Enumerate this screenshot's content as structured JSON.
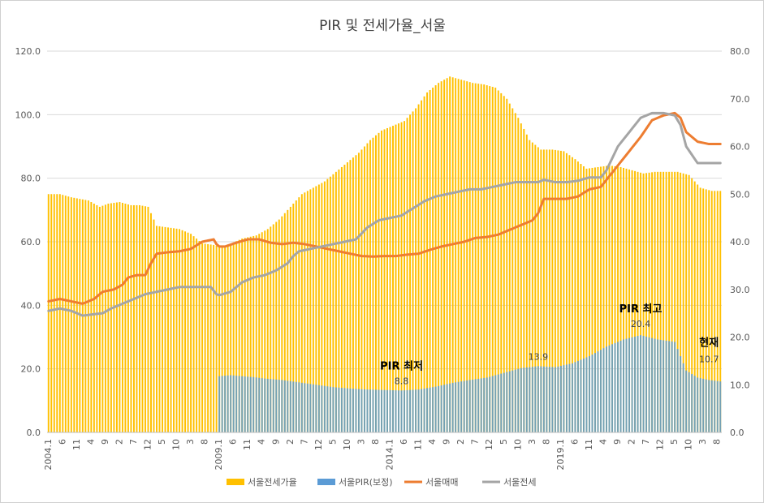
{
  "chart_data": {
    "type": "bar",
    "title": "PIR 및 전세가율_서울",
    "y_left": {
      "ticks": [
        "0.0",
        "20.0",
        "40.0",
        "60.0",
        "80.0",
        "100.0",
        "120.0"
      ],
      "ylim": [
        0,
        120
      ]
    },
    "y_right": {
      "ticks": [
        "0.0",
        "10.0",
        "20.0",
        "30.0",
        "40.0",
        "50.0",
        "60.0",
        "70.0",
        "80.0"
      ],
      "ylim": [
        0,
        80
      ]
    },
    "x_ticks": [
      "2004.1",
      "6",
      "11",
      "4",
      "9",
      "2",
      "7",
      "12",
      "5",
      "10",
      "3",
      "8",
      "2009.1",
      "6",
      "11",
      "4",
      "9",
      "2",
      "7",
      "12",
      "5",
      "10",
      "3",
      "8",
      "2014.1",
      "6",
      "11",
      "4",
      "9",
      "2",
      "7",
      "12",
      "5",
      "10",
      "3",
      "8",
      "2019.1",
      "6",
      "11",
      "4",
      "9",
      "2",
      "7",
      "12",
      "5",
      "10",
      "3",
      "8"
    ],
    "x_start": "2004-01",
    "grid": true,
    "legend_position": "bottom",
    "series": [
      {
        "name": "서울전세가율",
        "type": "bar",
        "axis": "left",
        "color": "#FFC000",
        "keypoints": [
          [
            0,
            75.0
          ],
          [
            4,
            75.0
          ],
          [
            8,
            74.0
          ],
          [
            14,
            73.0
          ],
          [
            18,
            71.0
          ],
          [
            21,
            72.0
          ],
          [
            25,
            72.5
          ],
          [
            29,
            71.5
          ],
          [
            32,
            71.5
          ],
          [
            35,
            71.0
          ],
          [
            38,
            65.0
          ],
          [
            42,
            64.5
          ],
          [
            46,
            64.0
          ],
          [
            50,
            62.5
          ],
          [
            54,
            59.5
          ],
          [
            58,
            59.0
          ],
          [
            60,
            58.5
          ],
          [
            63,
            59.0
          ],
          [
            68,
            61.0
          ],
          [
            73,
            62.0
          ],
          [
            77,
            64.0
          ],
          [
            81,
            67.0
          ],
          [
            85,
            71.0
          ],
          [
            89,
            75.0
          ],
          [
            93,
            77.0
          ],
          [
            97,
            79.0
          ],
          [
            101,
            82.0
          ],
          [
            105,
            85.0
          ],
          [
            109,
            88.0
          ],
          [
            113,
            92.0
          ],
          [
            117,
            95.0
          ],
          [
            121,
            96.5
          ],
          [
            125,
            98.0
          ],
          [
            129,
            102.0
          ],
          [
            133,
            107.0
          ],
          [
            137,
            110.0
          ],
          [
            141,
            112.0
          ],
          [
            145,
            111.0
          ],
          [
            149,
            110.0
          ],
          [
            153,
            109.5
          ],
          [
            157,
            108.5
          ],
          [
            161,
            105.0
          ],
          [
            165,
            99.0
          ],
          [
            169,
            92.0
          ],
          [
            173,
            89.0
          ],
          [
            177,
            89.0
          ],
          [
            181,
            88.5
          ],
          [
            185,
            86.0
          ],
          [
            189,
            83.0
          ],
          [
            193,
            83.5
          ],
          [
            197,
            84.0
          ],
          [
            201,
            83.5
          ],
          [
            205,
            82.5
          ],
          [
            209,
            81.5
          ],
          [
            213,
            82.0
          ],
          [
            217,
            82.0
          ],
          [
            221,
            82.0
          ],
          [
            225,
            81.0
          ],
          [
            229,
            77.0
          ],
          [
            233,
            76.0
          ],
          [
            236,
            76.0
          ]
        ]
      },
      {
        "name": "서울PIR(보정)",
        "type": "bar",
        "axis": "right",
        "color": "#5B9BD5",
        "keypoints": [
          [
            60,
            11.8
          ],
          [
            64,
            12.0
          ],
          [
            68,
            11.8
          ],
          [
            72,
            11.6
          ],
          [
            76,
            11.3
          ],
          [
            82,
            11.0
          ],
          [
            88,
            10.5
          ],
          [
            94,
            10.0
          ],
          [
            100,
            9.5
          ],
          [
            106,
            9.2
          ],
          [
            112,
            9.0
          ],
          [
            118,
            8.9
          ],
          [
            124,
            8.8
          ],
          [
            130,
            9.0
          ],
          [
            136,
            9.6
          ],
          [
            142,
            10.4
          ],
          [
            148,
            11.0
          ],
          [
            154,
            11.5
          ],
          [
            160,
            12.5
          ],
          [
            166,
            13.5
          ],
          [
            172,
            13.9
          ],
          [
            178,
            13.7
          ],
          [
            184,
            14.5
          ],
          [
            190,
            16.0
          ],
          [
            196,
            18.0
          ],
          [
            202,
            19.5
          ],
          [
            208,
            20.4
          ],
          [
            214,
            19.5
          ],
          [
            220,
            19.0
          ],
          [
            224,
            13.0
          ],
          [
            228,
            11.5
          ],
          [
            232,
            11.0
          ],
          [
            236,
            10.7
          ]
        ]
      },
      {
        "name": "서울매매",
        "type": "line",
        "axis": "right",
        "color": "#ED7D31",
        "keypoints": [
          [
            0,
            27.5
          ],
          [
            4,
            28.0
          ],
          [
            8,
            27.5
          ],
          [
            12,
            27.0
          ],
          [
            16,
            28.0
          ],
          [
            19,
            29.5
          ],
          [
            23,
            30.0
          ],
          [
            26,
            31.0
          ],
          [
            28,
            32.5
          ],
          [
            31,
            33.0
          ],
          [
            34,
            33.0
          ],
          [
            36,
            35.5
          ],
          [
            38,
            37.5
          ],
          [
            42,
            37.8
          ],
          [
            46,
            38.0
          ],
          [
            50,
            38.5
          ],
          [
            54,
            40.0
          ],
          [
            58,
            40.5
          ],
          [
            59,
            39.5
          ],
          [
            60,
            39.0
          ],
          [
            62,
            39.0
          ],
          [
            66,
            39.8
          ],
          [
            70,
            40.5
          ],
          [
            74,
            40.5
          ],
          [
            78,
            39.8
          ],
          [
            82,
            39.5
          ],
          [
            86,
            39.8
          ],
          [
            90,
            39.5
          ],
          [
            94,
            39.0
          ],
          [
            98,
            38.5
          ],
          [
            102,
            38.0
          ],
          [
            106,
            37.5
          ],
          [
            110,
            37.0
          ],
          [
            114,
            36.9
          ],
          [
            118,
            37.0
          ],
          [
            122,
            37.0
          ],
          [
            126,
            37.3
          ],
          [
            130,
            37.5
          ],
          [
            134,
            38.3
          ],
          [
            138,
            39.0
          ],
          [
            142,
            39.5
          ],
          [
            146,
            40.0
          ],
          [
            150,
            40.8
          ],
          [
            154,
            41.0
          ],
          [
            158,
            41.5
          ],
          [
            162,
            42.5
          ],
          [
            166,
            43.5
          ],
          [
            170,
            44.5
          ],
          [
            172,
            46.0
          ],
          [
            174,
            49.0
          ],
          [
            178,
            49.0
          ],
          [
            182,
            49.0
          ],
          [
            186,
            49.5
          ],
          [
            190,
            51.0
          ],
          [
            194,
            51.5
          ],
          [
            196,
            53.0
          ],
          [
            200,
            56.0
          ],
          [
            204,
            59.0
          ],
          [
            208,
            62.0
          ],
          [
            212,
            65.5
          ],
          [
            216,
            66.5
          ],
          [
            220,
            67.0
          ],
          [
            222,
            66.0
          ],
          [
            224,
            63.0
          ],
          [
            228,
            61.0
          ],
          [
            232,
            60.5
          ],
          [
            236,
            60.5
          ]
        ]
      },
      {
        "name": "서울전세",
        "type": "line",
        "axis": "right",
        "color": "#A5A5A5",
        "keypoints": [
          [
            0,
            25.5
          ],
          [
            4,
            26.0
          ],
          [
            8,
            25.5
          ],
          [
            12,
            24.5
          ],
          [
            16,
            24.8
          ],
          [
            19,
            25.0
          ],
          [
            22,
            26.0
          ],
          [
            26,
            27.0
          ],
          [
            30,
            28.0
          ],
          [
            34,
            29.0
          ],
          [
            38,
            29.5
          ],
          [
            42,
            30.0
          ],
          [
            46,
            30.5
          ],
          [
            50,
            30.5
          ],
          [
            54,
            30.5
          ],
          [
            57,
            30.5
          ],
          [
            59,
            29.0
          ],
          [
            60,
            28.8
          ],
          [
            64,
            29.5
          ],
          [
            68,
            31.5
          ],
          [
            72,
            32.5
          ],
          [
            76,
            33.0
          ],
          [
            80,
            34.0
          ],
          [
            84,
            35.5
          ],
          [
            86,
            37.0
          ],
          [
            88,
            38.0
          ],
          [
            92,
            38.5
          ],
          [
            96,
            39.0
          ],
          [
            100,
            39.5
          ],
          [
            104,
            40.0
          ],
          [
            108,
            40.5
          ],
          [
            112,
            43.0
          ],
          [
            116,
            44.5
          ],
          [
            120,
            45.0
          ],
          [
            124,
            45.5
          ],
          [
            128,
            47.0
          ],
          [
            132,
            48.5
          ],
          [
            136,
            49.5
          ],
          [
            140,
            50.0
          ],
          [
            144,
            50.5
          ],
          [
            148,
            51.0
          ],
          [
            152,
            51.0
          ],
          [
            156,
            51.5
          ],
          [
            160,
            52.0
          ],
          [
            164,
            52.5
          ],
          [
            168,
            52.5
          ],
          [
            172,
            52.5
          ],
          [
            174,
            53.0
          ],
          [
            178,
            52.5
          ],
          [
            182,
            52.5
          ],
          [
            186,
            52.8
          ],
          [
            190,
            53.5
          ],
          [
            194,
            53.5
          ],
          [
            196,
            55.0
          ],
          [
            200,
            60.0
          ],
          [
            204,
            63.0
          ],
          [
            208,
            66.0
          ],
          [
            212,
            67.0
          ],
          [
            216,
            67.0
          ],
          [
            220,
            66.5
          ],
          [
            222,
            64.5
          ],
          [
            224,
            60.0
          ],
          [
            228,
            56.5
          ],
          [
            232,
            56.5
          ],
          [
            236,
            56.5
          ]
        ]
      }
    ],
    "annotations": [
      {
        "title": "PIR 최저",
        "value": "8.8"
      },
      {
        "value": "13.9"
      },
      {
        "title": "PIR 최고",
        "value": "20.4"
      },
      {
        "title": "현재",
        "value": "10.7"
      }
    ]
  }
}
